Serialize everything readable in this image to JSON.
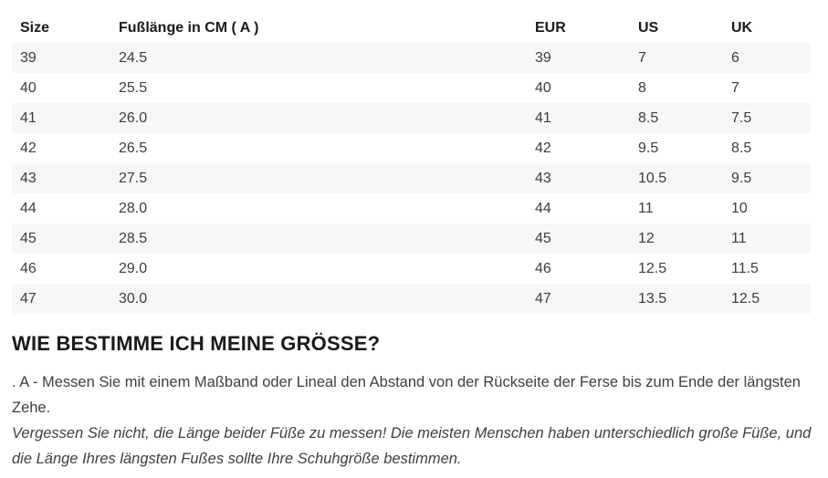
{
  "size_chart": {
    "columns": [
      "Size",
      "Fußlänge in CM ( A )",
      "EUR",
      "US",
      "UK"
    ],
    "rows": [
      [
        "39",
        "24.5",
        "39",
        "7",
        "6"
      ],
      [
        "40",
        "25.5",
        "40",
        "8",
        "7"
      ],
      [
        "41",
        "26.0",
        "41",
        "8.5",
        "7.5"
      ],
      [
        "42",
        "26.5",
        "42",
        "9.5",
        "8.5"
      ],
      [
        "43",
        "27.5",
        "43",
        "10.5",
        "9.5"
      ],
      [
        "44",
        "28.0",
        "44",
        "11",
        "10"
      ],
      [
        "45",
        "28.5",
        "45",
        "12",
        "11"
      ],
      [
        "46",
        "29.0",
        "46",
        "12.5",
        "11.5"
      ],
      [
        "47",
        "30.0",
        "47",
        "13.5",
        "12.5"
      ]
    ]
  },
  "guide": {
    "heading": "WIE BESTIMME ICH MEINE GRÖSSE?",
    "instruction": ". A - Messen Sie mit einem Maßband oder Lineal den Abstand von der Rückseite der Ferse bis zum Ende der längsten Zehe.",
    "note": "Vergessen Sie nicht, die Länge beider Füße zu messen! Die meisten Menschen haben unterschiedlich große Füße, und die Länge Ihres längsten Fußes sollte Ihre Schuhgröße bestimmen."
  },
  "colors": {
    "row_stripe": "#f7f7f7",
    "heading_text": "#1a1a1a",
    "body_text": "#3e3e3e",
    "background": "#ffffff"
  }
}
